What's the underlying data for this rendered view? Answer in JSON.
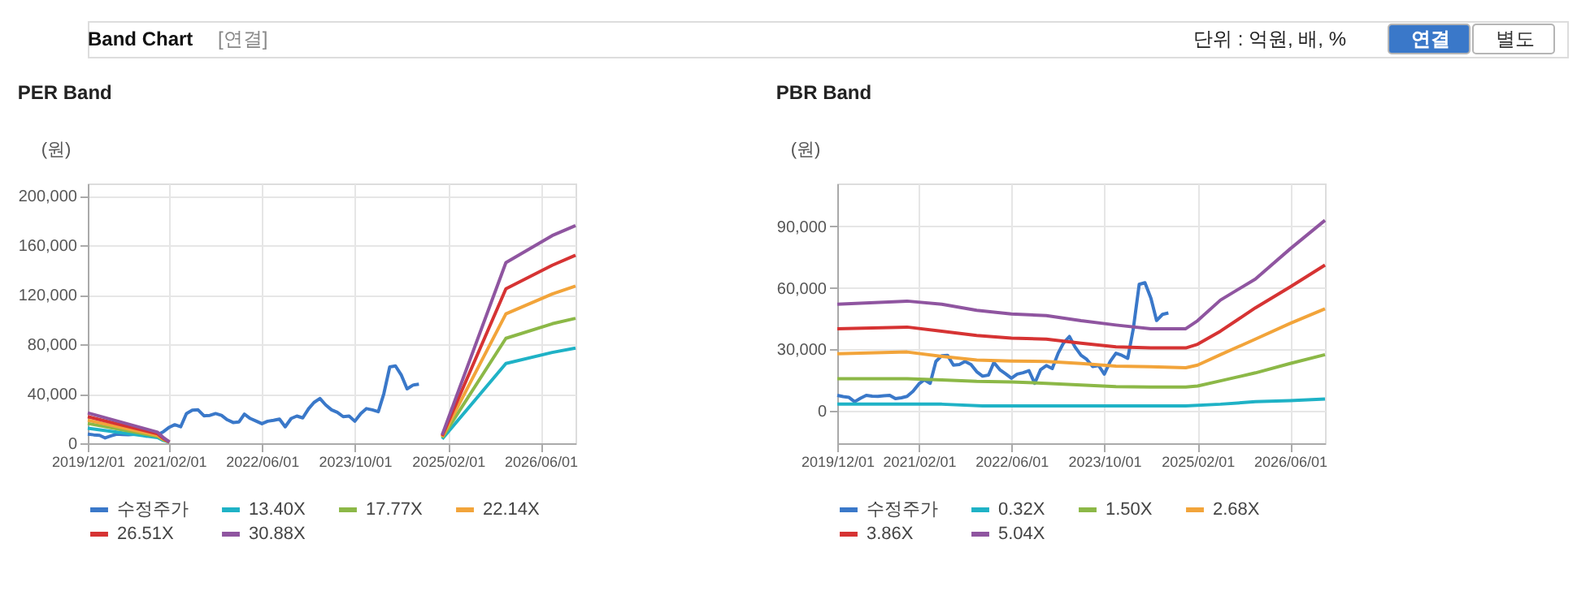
{
  "chart_data": [
    {
      "type": "line",
      "title": "PER Band",
      "ylabel": "(원)",
      "annotations": [
        "Band Chart",
        "[연결]",
        "단위 : 억원, 배, %",
        "연결",
        "별도"
      ],
      "x": [
        "2019-12",
        "2020-01",
        "2020-02",
        "2020-03",
        "2020-04",
        "2020-05",
        "2020-06",
        "2020-07",
        "2020-08",
        "2020-09",
        "2020-10",
        "2020-11",
        "2020-12",
        "2021-01",
        "2021-02",
        "2021-03",
        "2021-04",
        "2021-05",
        "2021-06",
        "2021-07",
        "2021-08",
        "2021-09",
        "2021-10",
        "2021-11",
        "2021-12",
        "2022-01",
        "2022-02",
        "2022-03",
        "2022-04",
        "2022-05",
        "2022-06",
        "2022-07",
        "2022-08",
        "2022-09",
        "2022-10",
        "2022-11",
        "2022-12",
        "2023-01",
        "2023-02",
        "2023-03",
        "2023-04",
        "2023-05",
        "2023-06",
        "2023-07",
        "2023-08",
        "2023-09",
        "2023-10",
        "2023-11",
        "2023-12",
        "2024-01",
        "2024-02",
        "2024-03",
        "2024-04",
        "2024-05",
        "2024-06",
        "2024-07",
        "2024-08",
        "2024-09"
      ],
      "series": [
        {
          "name": "수정주가",
          "color": "#3a78c9",
          "values": [
            7400,
            6800,
            6400,
            4300,
            6000,
            7400,
            7000,
            6900,
            7200,
            7400,
            5800,
            6200,
            6900,
            9400,
            13000,
            15000,
            13300,
            24000,
            26800,
            27000,
            22200,
            22500,
            24000,
            22500,
            19000,
            16800,
            17300,
            23500,
            20000,
            18000,
            15800,
            17800,
            18500,
            19500,
            13300,
            20000,
            22000,
            20500,
            28000,
            33000,
            36200,
            31000,
            27000,
            25000,
            21500,
            22000,
            17800,
            24000,
            28000,
            27000,
            25500,
            40000,
            61700,
            62500,
            55000,
            44000,
            47000,
            47700
          ]
        },
        {
          "name": "13.40X",
          "color": "#1fb2c6",
          "x": [
            "2019-12",
            "2020-12",
            "2021-01",
            "2021-02",
            "2023-01",
            "2025-01",
            "2025-12",
            "2026-08",
            "2026-12"
          ],
          "values": [
            12200,
            4600,
            2200,
            1000,
            null,
            3400,
            64500,
            73400,
            77000
          ]
        },
        {
          "name": "17.77X",
          "color": "#8cb847",
          "x": [
            "2019-12",
            "2020-12",
            "2021-01",
            "2021-02",
            "2023-01",
            "2025-01",
            "2025-12",
            "2026-08",
            "2026-12"
          ],
          "values": [
            16000,
            5500,
            2700,
            1000,
            null,
            4500,
            84800,
            96600,
            101000
          ]
        },
        {
          "name": "22.14X",
          "color": "#f2a43a",
          "x": [
            "2019-12",
            "2020-12",
            "2021-01",
            "2021-02",
            "2023-01",
            "2025-01",
            "2025-12",
            "2026-08",
            "2026-12"
          ],
          "values": [
            18600,
            6300,
            3200,
            1000,
            null,
            5200,
            104600,
            120700,
            127000
          ]
        },
        {
          "name": "26.51X",
          "color": "#d63333",
          "x": [
            "2019-12",
            "2020-12",
            "2021-01",
            "2021-02",
            "2023-01",
            "2025-01",
            "2025-12",
            "2026-08",
            "2026-12"
          ],
          "values": [
            21500,
            7600,
            3800,
            1000,
            null,
            5900,
            124900,
            143900,
            152000
          ]
        },
        {
          "name": "30.88X",
          "color": "#8f55a0",
          "x": [
            "2019-12",
            "2020-12",
            "2021-01",
            "2021-02",
            "2023-01",
            "2025-01",
            "2025-12",
            "2026-08",
            "2026-12"
          ],
          "values": [
            24500,
            8900,
            4500,
            1000,
            null,
            6800,
            146000,
            167900,
            176000
          ]
        }
      ],
      "xlim": [
        "2019-12-01",
        "2026-12-01"
      ],
      "xticks": [
        {
          "value": "2019-12-01",
          "label": "2019/12/01"
        },
        {
          "value": "2021-02-01",
          "label": "2021/02/01"
        },
        {
          "value": "2022-06-01",
          "label": "2022/06/01"
        },
        {
          "value": "2023-10-01",
          "label": "2023/10/01"
        },
        {
          "value": "2025-02-01",
          "label": "2025/02/01"
        },
        {
          "value": "2026-06-01",
          "label": "2026/06/01"
        }
      ],
      "ylim": [
        0,
        210000
      ],
      "yticks": [
        0,
        {
          "value": 40000,
          "label": "40,000"
        },
        {
          "value": 80000,
          "label": "80,000"
        },
        {
          "value": 120000,
          "label": "120,000"
        },
        {
          "value": 160000,
          "label": "160,000"
        },
        {
          "value": 200000,
          "label": "200,000"
        }
      ],
      "grid": true,
      "legend": "bottom",
      "line_style": "solid"
    },
    {
      "type": "line",
      "title": "PBR Band",
      "ylabel": "(원)",
      "x": [
        "2019-12",
        "2020-01",
        "2020-02",
        "2020-03",
        "2020-04",
        "2020-05",
        "2020-06",
        "2020-07",
        "2020-08",
        "2020-09",
        "2020-10",
        "2020-11",
        "2020-12",
        "2021-01",
        "2021-02",
        "2021-03",
        "2021-04",
        "2021-05",
        "2021-06",
        "2021-07",
        "2021-08",
        "2021-09",
        "2021-10",
        "2021-11",
        "2021-12",
        "2022-01",
        "2022-02",
        "2022-03",
        "2022-04",
        "2022-05",
        "2022-06",
        "2022-07",
        "2022-08",
        "2022-09",
        "2022-10",
        "2022-11",
        "2022-12",
        "2023-01",
        "2023-02",
        "2023-03",
        "2023-04",
        "2023-05",
        "2023-06",
        "2023-07",
        "2023-08",
        "2023-09",
        "2023-10",
        "2023-11",
        "2023-12",
        "2024-01",
        "2024-02",
        "2024-03",
        "2024-04",
        "2024-05",
        "2024-06",
        "2024-07",
        "2024-08",
        "2024-09"
      ],
      "series": [
        {
          "name": "수정주가",
          "color": "#3a78c9",
          "values": [
            7400,
            6800,
            6400,
            4300,
            6000,
            7400,
            7000,
            6900,
            7200,
            7400,
            5800,
            6200,
            6900,
            9400,
            13000,
            15000,
            13300,
            24000,
            26800,
            27000,
            22200,
            22500,
            24000,
            22500,
            19000,
            16800,
            17300,
            23500,
            20000,
            18000,
            15800,
            17800,
            18500,
            19500,
            13300,
            20000,
            22000,
            20500,
            28000,
            33000,
            36200,
            31000,
            27000,
            25000,
            21500,
            22000,
            17800,
            24000,
            28000,
            27000,
            25500,
            40000,
            61700,
            62500,
            55000,
            44000,
            47000,
            47700
          ]
        },
        {
          "name": "0.32X",
          "color": "#1fb2c6",
          "x": [
            "2019-12",
            "2021-06",
            "2022-01",
            "2024-12",
            "2025-06",
            "2025-12",
            "2026-06",
            "2026-12"
          ],
          "values": [
            3100,
            3100,
            2300,
            2300,
            3100,
            4300,
            4800,
            5600
          ]
        },
        {
          "name": "1.50X",
          "color": "#8cb847",
          "x": [
            "2019-12",
            "2020-12",
            "2021-06",
            "2021-12",
            "2022-06",
            "2022-12",
            "2023-06",
            "2023-12",
            "2024-06",
            "2024-12",
            "2025-02",
            "2025-06",
            "2025-12",
            "2026-06",
            "2026-12"
          ],
          "values": [
            15600,
            15600,
            15000,
            14300,
            14000,
            13300,
            12500,
            11700,
            11500,
            11500,
            12000,
            14500,
            18400,
            23000,
            27300
          ]
        },
        {
          "name": "2.68X",
          "color": "#f2a43a",
          "x": [
            "2019-12",
            "2020-12",
            "2021-06",
            "2021-12",
            "2022-06",
            "2022-12",
            "2023-06",
            "2023-12",
            "2024-06",
            "2024-12",
            "2025-02",
            "2025-06",
            "2025-12",
            "2026-06",
            "2026-12"
          ],
          "values": [
            27800,
            28600,
            26500,
            24700,
            24200,
            24000,
            23000,
            21700,
            21400,
            20900,
            22200,
            27300,
            34900,
            42600,
            49700
          ]
        },
        {
          "name": "3.86X",
          "color": "#d63333",
          "x": [
            "2019-12",
            "2020-12",
            "2021-06",
            "2021-12",
            "2022-06",
            "2022-12",
            "2023-06",
            "2023-12",
            "2024-06",
            "2024-12",
            "2025-02",
            "2025-06",
            "2025-12",
            "2026-06",
            "2026-12"
          ],
          "values": [
            40000,
            40800,
            38800,
            36700,
            35400,
            34900,
            32900,
            31100,
            30600,
            30600,
            32400,
            38800,
            50200,
            60400,
            71100
          ]
        },
        {
          "name": "5.04X",
          "color": "#8f55a0",
          "x": [
            "2019-12",
            "2020-12",
            "2021-06",
            "2021-12",
            "2022-06",
            "2022-12",
            "2023-06",
            "2023-12",
            "2024-06",
            "2024-12",
            "2025-02",
            "2025-06",
            "2025-12",
            "2026-06",
            "2026-12"
          ],
          "values": [
            52000,
            53500,
            52000,
            49000,
            47200,
            46400,
            43900,
            41800,
            40000,
            40000,
            43900,
            54000,
            64300,
            79000,
            93000
          ]
        }
      ],
      "xlim": [
        "2019-12-01",
        "2026-12-01"
      ],
      "xticks": [
        {
          "value": "2019-12-01",
          "label": "2019/12/01"
        },
        {
          "value": "2021-02-01",
          "label": "2021/02/01"
        },
        {
          "value": "2022-06-01",
          "label": "2022/06/01"
        },
        {
          "value": "2023-10-01",
          "label": "2023/10/01"
        },
        {
          "value": "2025-02-01",
          "label": "2025/02/01"
        },
        {
          "value": "2026-06-01",
          "label": "2026/06/01"
        }
      ],
      "ylim": [
        -16000,
        111000
      ],
      "yticks": [
        0,
        {
          "value": 30000,
          "label": "30,000"
        },
        {
          "value": 60000,
          "label": "60,000"
        },
        {
          "value": 90000,
          "label": "90,000"
        }
      ],
      "grid": true,
      "legend": "bottom",
      "line_style": "solid"
    }
  ]
}
